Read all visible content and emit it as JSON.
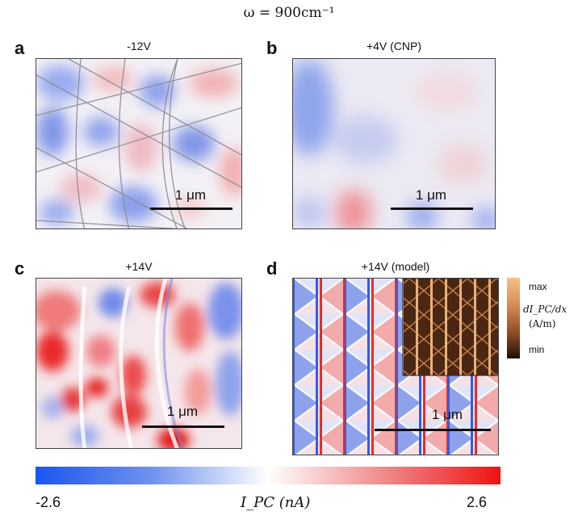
{
  "figure_title": "ω = 900cm⁻¹",
  "panels": [
    {
      "letter": "a",
      "label": "-12V",
      "scale": "1 μm"
    },
    {
      "letter": "b",
      "label": "+4V (CNP)",
      "scale": "1 μm"
    },
    {
      "letter": "c",
      "label": "+14V",
      "scale": "1 μm"
    },
    {
      "letter": "d",
      "label": "+14V (model)",
      "scale": "1 μm"
    }
  ],
  "colorbar": {
    "min_label": "-2.6",
    "max_label": "2.6",
    "label": "I_PC (nA)",
    "colors": [
      "#1a55f0",
      "#ffffff",
      "#f01212"
    ]
  },
  "inset_colorbar": {
    "max_label": "max",
    "min_label": "min",
    "quantity": "dI_PC/dx",
    "unit": "(A/m)",
    "colors": [
      "#f7c089",
      "#1c0e06"
    ]
  }
}
